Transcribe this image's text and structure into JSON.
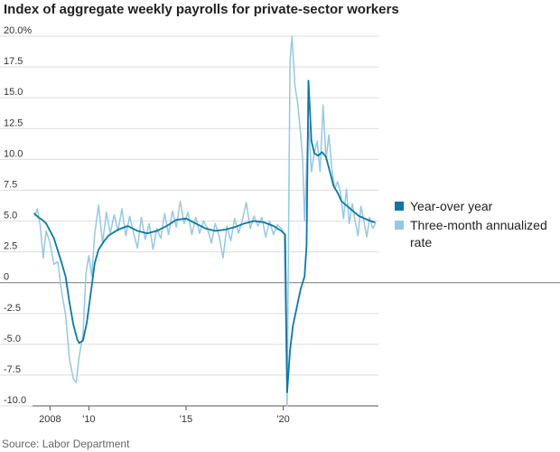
{
  "chart_data": {
    "type": "line",
    "title": "Index of aggregate weekly payrolls for private-sector workers",
    "xlabel": "",
    "ylabel": "",
    "xlim": [
      2007.1,
      2024.9
    ],
    "ylim": [
      -10,
      20
    ],
    "y_ticks": [
      {
        "value": 20,
        "label": "20.0%"
      },
      {
        "value": 17.5,
        "label": "17.5"
      },
      {
        "value": 15,
        "label": "15.0"
      },
      {
        "value": 12.5,
        "label": "12.5"
      },
      {
        "value": 10,
        "label": "10.0"
      },
      {
        "value": 7.5,
        "label": "7.5"
      },
      {
        "value": 5,
        "label": "5.0"
      },
      {
        "value": 2.5,
        "label": "2.5"
      },
      {
        "value": 0,
        "label": "0"
      },
      {
        "value": -2.5,
        "label": "-2.5"
      },
      {
        "value": -5,
        "label": "-5.0"
      },
      {
        "value": -7.5,
        "label": "-7.5"
      },
      {
        "value": -10,
        "label": "-10.0"
      }
    ],
    "x_ticks": [
      {
        "value": 2008,
        "label": "2008"
      },
      {
        "value": 2010,
        "label": "'10"
      },
      {
        "value": 2015,
        "label": "'15"
      },
      {
        "value": 2020,
        "label": "'20"
      }
    ],
    "grid": true,
    "legend_position": "right",
    "series": [
      {
        "name": "Year-over year",
        "color": "#0e77a6",
        "points": [
          [
            2007.2,
            5.6
          ],
          [
            2007.4,
            5.3
          ],
          [
            2007.6,
            5.1
          ],
          [
            2007.8,
            4.8
          ],
          [
            2008.0,
            4.2
          ],
          [
            2008.2,
            3.6
          ],
          [
            2008.4,
            2.6
          ],
          [
            2008.6,
            1.6
          ],
          [
            2008.8,
            0.5
          ],
          [
            2009.0,
            -1.6
          ],
          [
            2009.2,
            -3.4
          ],
          [
            2009.4,
            -4.6
          ],
          [
            2009.5,
            -4.9
          ],
          [
            2009.7,
            -4.7
          ],
          [
            2009.9,
            -3.2
          ],
          [
            2010.1,
            -0.8
          ],
          [
            2010.3,
            1.6
          ],
          [
            2010.5,
            2.7
          ],
          [
            2010.8,
            3.4
          ],
          [
            2011.0,
            3.8
          ],
          [
            2011.5,
            4.3
          ],
          [
            2012.0,
            4.6
          ],
          [
            2012.5,
            4.2
          ],
          [
            2013.0,
            4.0
          ],
          [
            2013.5,
            4.2
          ],
          [
            2014.0,
            4.6
          ],
          [
            2014.5,
            5.1
          ],
          [
            2015.0,
            5.2
          ],
          [
            2015.5,
            4.8
          ],
          [
            2016.0,
            4.4
          ],
          [
            2016.5,
            4.2
          ],
          [
            2017.0,
            4.3
          ],
          [
            2017.5,
            4.5
          ],
          [
            2018.0,
            4.8
          ],
          [
            2018.5,
            5.0
          ],
          [
            2019.0,
            4.9
          ],
          [
            2019.5,
            4.6
          ],
          [
            2019.9,
            4.2
          ],
          [
            2020.1,
            3.9
          ],
          [
            2020.2,
            -8.9
          ],
          [
            2020.35,
            -5.5
          ],
          [
            2020.5,
            -3.5
          ],
          [
            2020.7,
            -2.0
          ],
          [
            2020.9,
            -0.5
          ],
          [
            2021.1,
            0.5
          ],
          [
            2021.2,
            3.0
          ],
          [
            2021.3,
            16.4
          ],
          [
            2021.45,
            11.5
          ],
          [
            2021.6,
            10.5
          ],
          [
            2021.8,
            10.3
          ],
          [
            2022.0,
            10.6
          ],
          [
            2022.2,
            10.2
          ],
          [
            2022.4,
            9.0
          ],
          [
            2022.6,
            7.8
          ],
          [
            2022.8,
            7.3
          ],
          [
            2023.0,
            6.6
          ],
          [
            2023.3,
            6.2
          ],
          [
            2023.6,
            5.8
          ],
          [
            2023.9,
            5.4
          ],
          [
            2024.2,
            5.2
          ],
          [
            2024.5,
            5.0
          ],
          [
            2024.7,
            4.9
          ]
        ]
      },
      {
        "name": "Three-month annualized rate",
        "color": "#96c8e3",
        "points": [
          [
            2007.2,
            5.4
          ],
          [
            2007.35,
            6.0
          ],
          [
            2007.5,
            4.6
          ],
          [
            2007.65,
            2.0
          ],
          [
            2007.8,
            4.2
          ],
          [
            2008.0,
            3.2
          ],
          [
            2008.2,
            1.5
          ],
          [
            2008.4,
            1.7
          ],
          [
            2008.6,
            -0.8
          ],
          [
            2008.8,
            -2.6
          ],
          [
            2009.0,
            -6.2
          ],
          [
            2009.2,
            -7.8
          ],
          [
            2009.35,
            -8.1
          ],
          [
            2009.5,
            -6.0
          ],
          [
            2009.7,
            -4.2
          ],
          [
            2009.85,
            0.8
          ],
          [
            2010.0,
            2.2
          ],
          [
            2010.15,
            0.5
          ],
          [
            2010.3,
            4.0
          ],
          [
            2010.5,
            6.3
          ],
          [
            2010.7,
            3.2
          ],
          [
            2010.9,
            5.7
          ],
          [
            2011.1,
            4.0
          ],
          [
            2011.3,
            5.5
          ],
          [
            2011.5,
            4.2
          ],
          [
            2011.7,
            6.0
          ],
          [
            2011.9,
            3.8
          ],
          [
            2012.1,
            5.4
          ],
          [
            2012.3,
            4.0
          ],
          [
            2012.5,
            2.8
          ],
          [
            2012.7,
            5.3
          ],
          [
            2012.9,
            3.5
          ],
          [
            2013.1,
            4.8
          ],
          [
            2013.3,
            2.7
          ],
          [
            2013.5,
            4.4
          ],
          [
            2013.7,
            3.6
          ],
          [
            2013.9,
            5.6
          ],
          [
            2014.1,
            3.9
          ],
          [
            2014.3,
            5.8
          ],
          [
            2014.5,
            4.5
          ],
          [
            2014.7,
            6.6
          ],
          [
            2014.9,
            4.8
          ],
          [
            2015.1,
            5.7
          ],
          [
            2015.3,
            3.9
          ],
          [
            2015.5,
            5.3
          ],
          [
            2015.7,
            4.0
          ],
          [
            2015.9,
            5.0
          ],
          [
            2016.1,
            4.4
          ],
          [
            2016.3,
            3.2
          ],
          [
            2016.5,
            4.8
          ],
          [
            2016.7,
            3.8
          ],
          [
            2016.9,
            2.0
          ],
          [
            2017.1,
            4.6
          ],
          [
            2017.3,
            3.4
          ],
          [
            2017.5,
            5.2
          ],
          [
            2017.7,
            4.0
          ],
          [
            2017.9,
            5.1
          ],
          [
            2018.1,
            6.5
          ],
          [
            2018.3,
            4.4
          ],
          [
            2018.5,
            5.4
          ],
          [
            2018.7,
            4.6
          ],
          [
            2018.9,
            5.3
          ],
          [
            2019.1,
            3.7
          ],
          [
            2019.3,
            5.0
          ],
          [
            2019.5,
            3.9
          ],
          [
            2019.7,
            4.7
          ],
          [
            2019.9,
            4.4
          ],
          [
            2020.05,
            4.0
          ],
          [
            2020.2,
            -10.0
          ],
          [
            2020.35,
            18.0
          ],
          [
            2020.45,
            20.0
          ],
          [
            2020.6,
            16.0
          ],
          [
            2020.75,
            14.5
          ],
          [
            2020.9,
            12.0
          ],
          [
            2021.0,
            10.0
          ],
          [
            2021.1,
            5.0
          ],
          [
            2021.2,
            9.5
          ],
          [
            2021.3,
            13.0
          ],
          [
            2021.45,
            9.0
          ],
          [
            2021.6,
            10.5
          ],
          [
            2021.75,
            11.5
          ],
          [
            2021.9,
            9.0
          ],
          [
            2022.05,
            14.4
          ],
          [
            2022.2,
            10.0
          ],
          [
            2022.35,
            12.0
          ],
          [
            2022.5,
            9.2
          ],
          [
            2022.65,
            7.6
          ],
          [
            2022.8,
            8.2
          ],
          [
            2022.95,
            7.3
          ],
          [
            2023.1,
            5.2
          ],
          [
            2023.25,
            7.6
          ],
          [
            2023.4,
            4.8
          ],
          [
            2023.55,
            6.4
          ],
          [
            2023.7,
            5.0
          ],
          [
            2023.85,
            3.8
          ],
          [
            2024.0,
            6.2
          ],
          [
            2024.15,
            5.0
          ],
          [
            2024.3,
            3.7
          ],
          [
            2024.45,
            5.3
          ],
          [
            2024.6,
            4.4
          ],
          [
            2024.75,
            4.8
          ]
        ]
      }
    ]
  },
  "source": "Source: Labor Department"
}
